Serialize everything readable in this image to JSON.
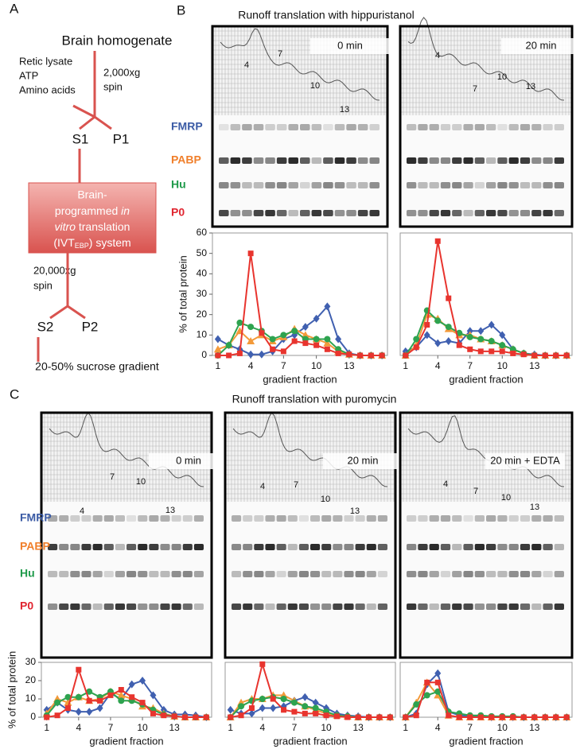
{
  "panel_a": {
    "label": "A",
    "top": "Brain homogenate",
    "additions": [
      "Retic lysate",
      "ATP",
      "Amino acids"
    ],
    "spin1": [
      "2,000xg",
      "spin"
    ],
    "s1": "S1",
    "p1": "P1",
    "box": {
      "l1": "Brain-",
      "l2a": "programmed ",
      "l2b": "in",
      "l3a": "vitro",
      "l3b": " translation",
      "l4a": "(IVT",
      "l4b": "EBP",
      "l4c": ") system"
    },
    "spin2": [
      "20,000xg",
      "spin"
    ],
    "s2": "S2",
    "p2": "P2",
    "bottom": "20-50% sucrose gradient"
  },
  "panel_b": {
    "label": "B",
    "title": "Runoff translation with hippuristanol",
    "proteins": [
      {
        "name": "FMRP",
        "color": "#3b5ba5"
      },
      {
        "name": "PABP",
        "color": "#f07f2b"
      },
      {
        "name": "Hu",
        "color": "#1f9a4a"
      },
      {
        "name": "P0",
        "color": "#e02530"
      }
    ],
    "gels": [
      {
        "time": "0 min",
        "fractions": [
          "4",
          "7",
          "10",
          "13"
        ]
      },
      {
        "time": "20 min",
        "fractions": [
          "4",
          "7",
          "10",
          "13"
        ]
      }
    ]
  },
  "panel_c": {
    "label": "C",
    "title": "Runoff translation with puromycin",
    "proteins": [
      {
        "name": "FMRP",
        "color": "#3b5ba5"
      },
      {
        "name": "PABP",
        "color": "#f07f2b"
      },
      {
        "name": "Hu",
        "color": "#1f9a4a"
      },
      {
        "name": "P0",
        "color": "#e02530"
      }
    ],
    "gels": [
      {
        "time": "0 min",
        "fractions": [
          "4",
          "7",
          "10",
          "13"
        ]
      },
      {
        "time": "20 min",
        "fractions": [
          "4",
          "7",
          "10",
          "13"
        ]
      },
      {
        "time": "20 min + EDTA",
        "fractions": [
          "4",
          "7",
          "10",
          "13"
        ]
      }
    ]
  },
  "chart_data": [
    {
      "type": "line",
      "ylabel": "% of total protein",
      "xlabel": "gradient fraction",
      "x": [
        1,
        2,
        3,
        4,
        5,
        6,
        7,
        8,
        9,
        10,
        11,
        12,
        13,
        14,
        15,
        16
      ],
      "xlim": [
        0.5,
        16.5
      ],
      "xticks": [
        1,
        4,
        7,
        10,
        13
      ],
      "ylim": [
        0,
        60
      ],
      "yticks": [
        0,
        10,
        20,
        30,
        40,
        50,
        60
      ],
      "series": [
        {
          "color": "#4060b0",
          "marker": "diamond",
          "values": [
            8,
            5,
            3,
            0.5,
            0.5,
            2,
            8,
            10,
            14,
            18,
            24,
            8,
            1,
            0,
            0,
            0
          ]
        },
        {
          "color": "#f39a3a",
          "marker": "triangle",
          "values": [
            3,
            5,
            12,
            7,
            10,
            7,
            9,
            13,
            10,
            8,
            6,
            2,
            0.5,
            0,
            0,
            0
          ]
        },
        {
          "color": "#2ea34f",
          "marker": "circle",
          "values": [
            0,
            5,
            16,
            14,
            12,
            8,
            10,
            12,
            8,
            8,
            8,
            3,
            0.5,
            0,
            0,
            0
          ]
        },
        {
          "color": "#e8342e",
          "marker": "square",
          "values": [
            0,
            0,
            1,
            50,
            11,
            3,
            2,
            7,
            6,
            5,
            3,
            1,
            0.5,
            0,
            0,
            0
          ]
        }
      ]
    },
    {
      "type": "line",
      "xlabel": "gradient fraction",
      "x": [
        1,
        2,
        3,
        4,
        5,
        6,
        7,
        8,
        9,
        10,
        11,
        12,
        13,
        14,
        15,
        16
      ],
      "xlim": [
        0.5,
        16.5
      ],
      "xticks": [
        1,
        4,
        7,
        10,
        13
      ],
      "ylim": [
        0,
        60
      ],
      "series": [
        {
          "color": "#4060b0",
          "marker": "diamond",
          "values": [
            2,
            4,
            10,
            6,
            7,
            6,
            12,
            12,
            15,
            10,
            3,
            1,
            0.5,
            0,
            0,
            0
          ]
        },
        {
          "color": "#f39a3a",
          "marker": "triangle",
          "values": [
            0,
            5,
            20,
            18,
            13,
            10,
            10,
            8,
            7,
            5,
            3,
            1,
            0,
            0,
            0,
            0
          ]
        },
        {
          "color": "#2ea34f",
          "marker": "circle",
          "values": [
            0,
            8,
            22,
            17,
            14,
            11,
            9,
            8,
            7,
            5,
            3,
            1,
            0,
            0,
            0,
            0
          ]
        },
        {
          "color": "#e8342e",
          "marker": "square",
          "values": [
            0,
            4,
            15,
            56,
            28,
            5,
            3,
            2,
            2,
            2,
            1,
            0.5,
            0,
            0,
            0,
            0
          ]
        }
      ]
    },
    {
      "type": "line",
      "ylabel": "% of total protein",
      "xlabel": "gradient fraction",
      "x": [
        1,
        2,
        3,
        4,
        5,
        6,
        7,
        8,
        9,
        10,
        11,
        12,
        13,
        14,
        15,
        16
      ],
      "xlim": [
        0.5,
        16.5
      ],
      "xticks": [
        1,
        4,
        7,
        10,
        13
      ],
      "ylim": [
        0,
        30
      ],
      "yticks": [
        0,
        10,
        20,
        30
      ],
      "series": [
        {
          "color": "#4060b0",
          "marker": "diamond",
          "values": [
            4,
            8,
            4,
            3,
            3,
            5,
            13,
            10,
            18,
            20,
            12,
            4,
            1.5,
            1.5,
            1,
            0
          ]
        },
        {
          "color": "#f39a3a",
          "marker": "triangle",
          "values": [
            2,
            10,
            8,
            11,
            9,
            10,
            14,
            12,
            10,
            6,
            5,
            2,
            0.5,
            0,
            0,
            0
          ]
        },
        {
          "color": "#2ea34f",
          "marker": "circle",
          "values": [
            1,
            8,
            11,
            11,
            14,
            11,
            14,
            9,
            9,
            7,
            4,
            1.5,
            0.5,
            0,
            0,
            0
          ]
        },
        {
          "color": "#e8342e",
          "marker": "square",
          "values": [
            0,
            1,
            5,
            26,
            9,
            9,
            12,
            15,
            11,
            8,
            2,
            1,
            0.5,
            0,
            0,
            0
          ]
        }
      ]
    },
    {
      "type": "line",
      "xlabel": "gradient fraction",
      "x": [
        1,
        2,
        3,
        4,
        5,
        6,
        7,
        8,
        9,
        10,
        11,
        12,
        13,
        14,
        15,
        16
      ],
      "xlim": [
        0.5,
        16.5
      ],
      "xticks": [
        1,
        4,
        7,
        10,
        13
      ],
      "ylim": [
        0,
        30
      ],
      "series": [
        {
          "color": "#4060b0",
          "marker": "diamond",
          "values": [
            4,
            2,
            2,
            5,
            5,
            6,
            9,
            11,
            8,
            5,
            2,
            1,
            0.5,
            0,
            0,
            0
          ]
        },
        {
          "color": "#f39a3a",
          "marker": "triangle",
          "values": [
            0,
            8,
            10,
            10,
            12,
            12,
            9,
            6,
            4,
            2,
            1,
            0.5,
            0,
            0,
            0,
            0
          ]
        },
        {
          "color": "#2ea34f",
          "marker": "circle",
          "values": [
            0,
            6,
            9,
            10,
            11,
            10,
            8,
            6,
            5,
            3,
            1,
            0.5,
            0,
            0,
            0,
            0
          ]
        },
        {
          "color": "#e8342e",
          "marker": "square",
          "values": [
            0,
            1,
            5,
            29,
            10,
            4,
            3,
            2,
            2,
            1,
            0.5,
            0,
            0,
            0,
            0,
            0
          ]
        }
      ]
    },
    {
      "type": "line",
      "xlabel": "gradient fraction",
      "x": [
        1,
        2,
        3,
        4,
        5,
        6,
        7,
        8,
        9,
        10,
        11,
        12,
        13,
        14,
        15,
        16
      ],
      "xlim": [
        0.5,
        16.5
      ],
      "xticks": [
        1,
        4,
        7,
        10,
        13
      ],
      "ylim": [
        0,
        30
      ],
      "series": [
        {
          "color": "#4060b0",
          "marker": "diamond",
          "values": [
            0,
            2,
            18,
            24,
            3,
            1,
            0.5,
            0.5,
            0,
            0,
            0,
            0,
            0,
            0,
            0,
            0
          ]
        },
        {
          "color": "#f39a3a",
          "marker": "triangle",
          "values": [
            0,
            8,
            19,
            12,
            1,
            0,
            0,
            0,
            0,
            0,
            0,
            0,
            0,
            0,
            0,
            0
          ]
        },
        {
          "color": "#2ea34f",
          "marker": "circle",
          "values": [
            0,
            7,
            12,
            14,
            3,
            2,
            1,
            1,
            0.5,
            0.5,
            0.5,
            0,
            0,
            0,
            0,
            0
          ]
        },
        {
          "color": "#e8342e",
          "marker": "square",
          "values": [
            0,
            1,
            19,
            19,
            1,
            0,
            0,
            0,
            0,
            0,
            0,
            0,
            0,
            0,
            0,
            0
          ]
        }
      ]
    }
  ]
}
